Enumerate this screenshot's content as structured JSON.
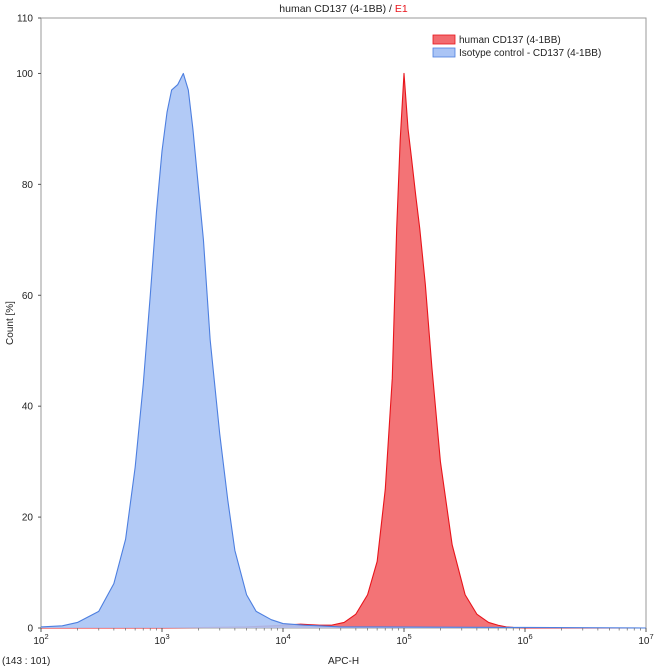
{
  "chart_data": {
    "type": "area",
    "title": "human CD137 (4-1BB)",
    "title_suffix": "E1",
    "title_suffix_color": "#e8141b",
    "xlabel": "APC-H",
    "ylabel": "Count [%]",
    "x_scale": "log",
    "xlim": [
      100,
      10000000
    ],
    "ylim": [
      0,
      110
    ],
    "x_ticks": [
      {
        "base": "10",
        "exp": "2"
      },
      {
        "base": "10",
        "exp": "3"
      },
      {
        "base": "10",
        "exp": "4"
      },
      {
        "base": "10",
        "exp": "5"
      },
      {
        "base": "10",
        "exp": "6"
      },
      {
        "base": "10",
        "exp": "7"
      }
    ],
    "y_ticks": [
      "0",
      "20",
      "40",
      "60",
      "80",
      "100",
      "110"
    ],
    "grid": false,
    "legend_position": "top-right",
    "series": [
      {
        "name": "human CD137 (4-1BB)",
        "fill": "#f26b6f",
        "stroke": "#e8141b",
        "x": [
          100,
          1000,
          5000,
          8000,
          10000,
          14000,
          20000,
          25000,
          32000,
          40000,
          50000,
          60000,
          70000,
          80000,
          87000,
          93000,
          100000,
          108000,
          115000,
          125000,
          135000,
          150000,
          170000,
          200000,
          250000,
          320000,
          400000,
          500000,
          600000,
          700000,
          800000,
          1000000,
          10000000
        ],
        "y": [
          0,
          0,
          0.2,
          0.4,
          0.5,
          0.7,
          0.5,
          0.5,
          1.0,
          2.5,
          6,
          12,
          25,
          45,
          72,
          88,
          100,
          90,
          85,
          78,
          72,
          62,
          47,
          30,
          15,
          6,
          2.5,
          1.0,
          0.5,
          0.2,
          0.1,
          0,
          0
        ]
      },
      {
        "name": "Isotype control - CD137 (4-1BB)",
        "fill": "#aac4f5",
        "stroke": "#4d7fe0",
        "x": [
          100,
          150,
          200,
          300,
          400,
          500,
          600,
          700,
          800,
          900,
          1000,
          1100,
          1200,
          1350,
          1500,
          1650,
          1800,
          1950,
          2200,
          2500,
          3000,
          3500,
          4000,
          5000,
          6000,
          8000,
          10000,
          15000,
          20000,
          30000,
          50000,
          1000000,
          10000000
        ],
        "y": [
          0.2,
          0.4,
          1.0,
          3.0,
          8.0,
          16,
          29,
          44,
          60,
          75,
          86,
          93,
          97,
          98,
          100,
          97,
          90,
          82,
          70,
          52,
          35,
          23,
          14,
          6,
          3.0,
          1.5,
          0.8,
          0.5,
          0.4,
          0.2,
          0.2,
          0.1,
          0
        ]
      }
    ]
  },
  "coordinate_readout": "(143 : 101)"
}
